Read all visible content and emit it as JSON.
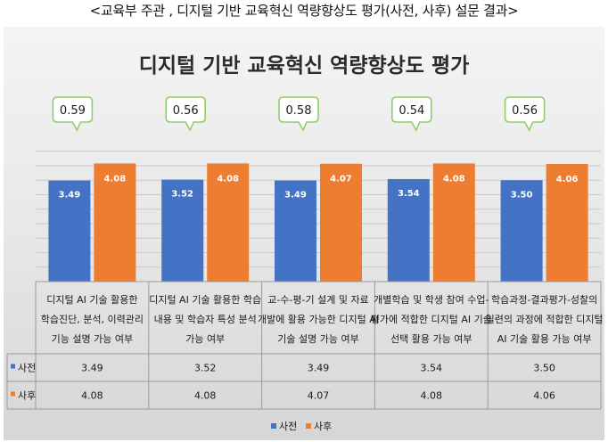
{
  "page_title": "<교육부 주관 , 디지털 기반 교육혁신 역량향상도 평가(사전, 사후) 설문 결과>",
  "chart_data": {
    "type": "bar",
    "title": "디지털 기반 교육혁신 역량향상도 평가",
    "categories": [
      [
        "디지털 AI 기술 활용한",
        "학습진단, 분석, 이력관리",
        "기능 설명 가능 여부"
      ],
      [
        "디지털 AI 기술 활용한 학습",
        "내용 및 학습자 특성 분석",
        "가능 여부"
      ],
      [
        "교-수-평-기 설계 및 자료",
        "개발에 활용 가능한 디지털 AI",
        "기술 설명 가능 여부"
      ],
      [
        "개별학습 및 학생 참여 수업-",
        "평가에 적합한 디지털 AI 기술",
        "선택 활용 가능 여부"
      ],
      [
        "학습과정-결과평가-성찰의",
        "일련의 과정에 적합한 디지털",
        "AI 기술 활용 가능 여부"
      ]
    ],
    "series": [
      {
        "name": "사전",
        "color": "#4472C4",
        "values": [
          3.49,
          3.52,
          3.49,
          3.54,
          3.5
        ],
        "labels": [
          "3.49",
          "3.52",
          "3.49",
          "3.54",
          "3.50"
        ]
      },
      {
        "name": "사후",
        "color": "#ED7D31",
        "values": [
          4.08,
          4.08,
          4.07,
          4.08,
          4.06
        ],
        "labels": [
          "4.08",
          "4.08",
          "4.07",
          "4.08",
          "4.06"
        ]
      }
    ],
    "differences": [
      "0.59",
      "0.56",
      "0.58",
      "0.54",
      "0.56"
    ],
    "ylim": [
      0,
      4.5
    ],
    "grid": true,
    "legend": "bottom",
    "data_table": true
  }
}
